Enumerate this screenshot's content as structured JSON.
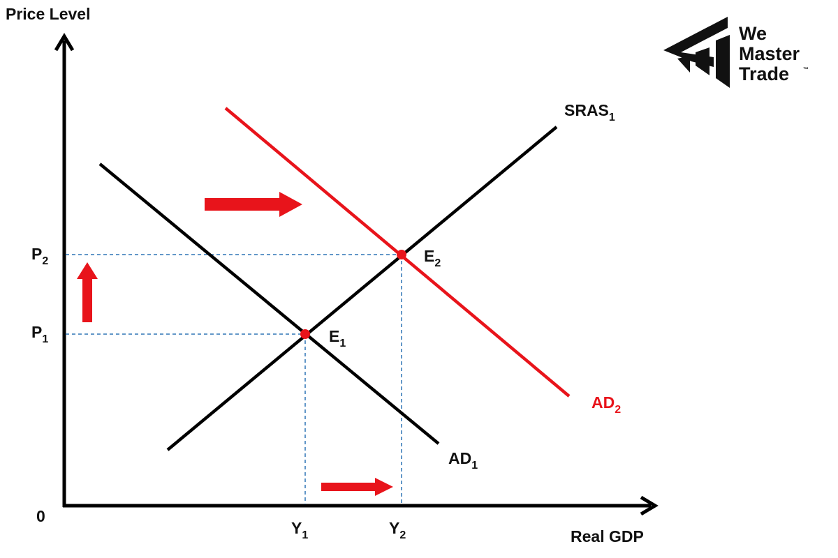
{
  "axes": {
    "y_label": "Price Level",
    "x_label": "Real GDP",
    "origin": "0"
  },
  "curves": [
    {
      "label": "SRAS",
      "sub": "1"
    },
    {
      "label": "AD",
      "sub": "1"
    },
    {
      "label": "AD",
      "sub": "2"
    }
  ],
  "points": [
    {
      "label": "E",
      "sub": "1"
    },
    {
      "label": "E",
      "sub": "2"
    }
  ],
  "price_levels": [
    {
      "label": "P",
      "sub": "1"
    },
    {
      "label": "P",
      "sub": "2"
    }
  ],
  "outputs": [
    {
      "label": "Y",
      "sub": "1"
    },
    {
      "label": "Y",
      "sub": "2"
    }
  ],
  "logo": {
    "line1": "We",
    "line2": "Master",
    "line3": "Trade",
    "mark": "™"
  }
}
